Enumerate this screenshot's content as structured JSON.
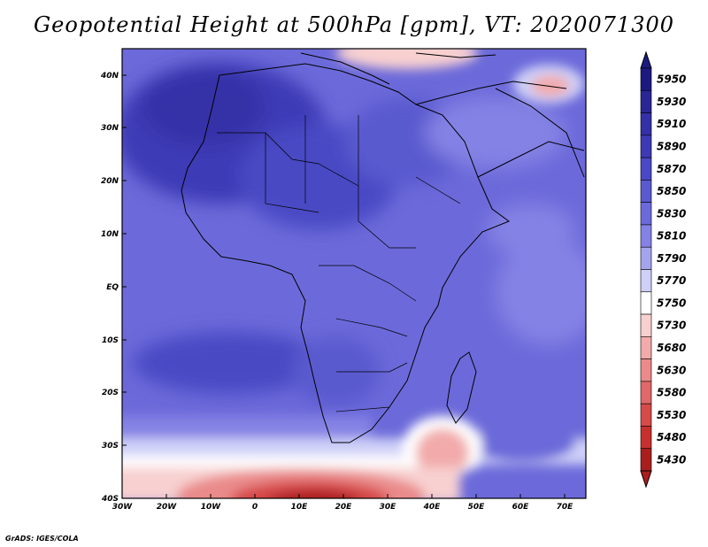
{
  "title": "Geopotential Height at 500hPa [gpm], VT: 2020071300",
  "footer": "GrADS: IGES/COLA",
  "lat_labels": [
    "40N",
    "30N",
    "20N",
    "10N",
    "EQ",
    "10S",
    "20S",
    "30S",
    "40S"
  ],
  "lon_labels": [
    "30W",
    "20W",
    "10W",
    "0",
    "10E",
    "20E",
    "30E",
    "40E",
    "50E",
    "60E",
    "70E"
  ],
  "colorbar": {
    "levels": [
      "5950",
      "5930",
      "5910",
      "5890",
      "5870",
      "5850",
      "5830",
      "5810",
      "5790",
      "5770",
      "5750",
      "5730",
      "5680",
      "5630",
      "5580",
      "5530",
      "5480",
      "5430"
    ],
    "colors": [
      "#1c1a80",
      "#2a2696",
      "#3430a8",
      "#3e3ab6",
      "#4a48c4",
      "#5a5acf",
      "#6c6ada",
      "#8482e4",
      "#a4a4ee",
      "#cfd0f8",
      "#ffffff",
      "#f8d0d0",
      "#f2aaaa",
      "#ea8a8a",
      "#e06868",
      "#d64a4a",
      "#c83030",
      "#aa1e1e"
    ]
  },
  "colors": {
    "frame": "#000000",
    "coast": "#000000"
  }
}
